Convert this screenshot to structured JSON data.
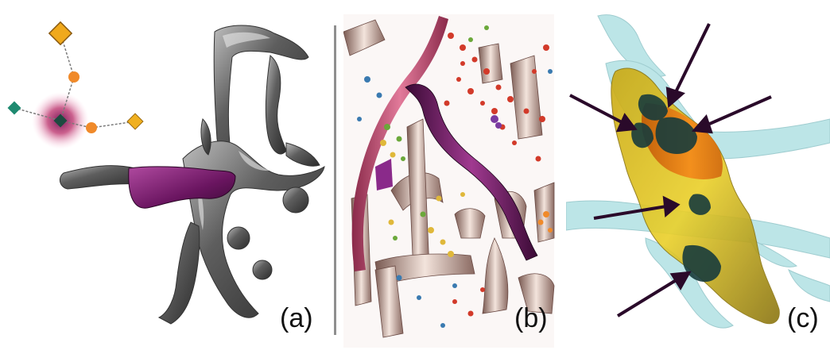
{
  "panels": [
    {
      "id": "a",
      "label": "(a)"
    },
    {
      "id": "b",
      "label": "(b)"
    },
    {
      "id": "c",
      "label": "(c)"
    }
  ],
  "colors": {
    "surface_gray": "#5a5a5a",
    "highlight_purple": "#7a1a6a",
    "tube_pink": "#c85a7a",
    "bone": "#e8d6cc",
    "overlay_cyan": "#9fd9dc",
    "overlay_yellow": "#e3c21c",
    "overlay_orange": "#f07a12",
    "dark_spot": "#183c3c",
    "node_orange": "#f08a2a",
    "node_teal": "#1e8a70",
    "node_gold": "#f0a91c"
  }
}
